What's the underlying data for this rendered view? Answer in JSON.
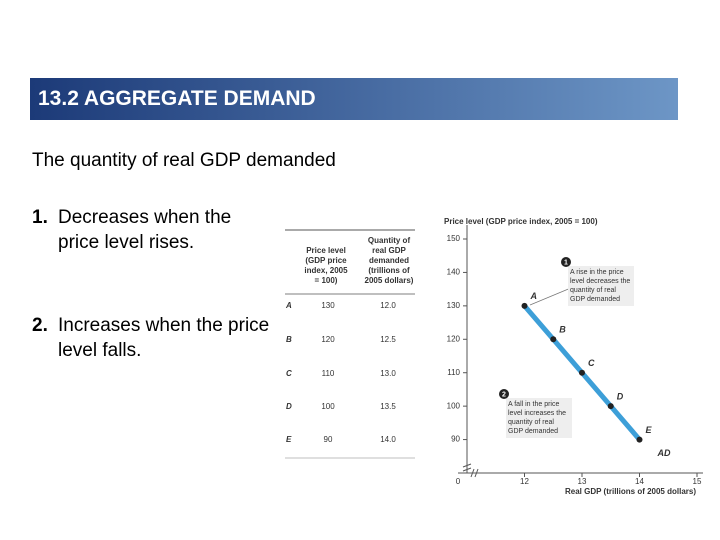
{
  "header": {
    "title": "13.2  AGGREGATE DEMAND"
  },
  "body": {
    "intro": "The quantity of real GDP demanded",
    "items": [
      {
        "number": "1.",
        "text": "Decreases when the price level rises."
      },
      {
        "number": "2.",
        "text": "Increases when the price level falls."
      }
    ]
  },
  "table": {
    "columns": [
      "Price level (GDP price index, 2005 = 100)",
      "Quantity of real GDP demanded (trillions of 2005 dollars)"
    ],
    "rows": [
      [
        "A",
        "130",
        "12.0"
      ],
      [
        "B",
        "120",
        "12.5"
      ],
      [
        "C",
        "110",
        "13.0"
      ],
      [
        "D",
        "100",
        "13.5"
      ],
      [
        "E",
        "90",
        "14.0"
      ]
    ]
  },
  "chart_data": {
    "type": "line",
    "ylabel": "Price level (GDP price index, 2005 = 100)",
    "xlabel": "Real GDP (trillions of 2005 dollars)",
    "origin_label": "0",
    "x": [
      12,
      12.5,
      13,
      13.5,
      14
    ],
    "point_labels": [
      "A",
      "B",
      "C",
      "D",
      "E"
    ],
    "series": [
      {
        "name": "AD",
        "color": "#3d9fd8",
        "values": [
          130,
          120,
          110,
          100,
          90
        ]
      }
    ],
    "xlim": [
      11,
      15
    ],
    "ylim": [
      80,
      150
    ],
    "xticks": [
      12,
      13,
      14,
      15
    ],
    "yticks": [
      90,
      100,
      110,
      120,
      130,
      140,
      150
    ],
    "annotations": [
      {
        "marker": "1",
        "text": "A rise in the price level decreases the quantity of real GDP demanded"
      },
      {
        "marker": "2",
        "text": "A fall in the price level increases the quantity of real GDP demanded"
      }
    ]
  }
}
